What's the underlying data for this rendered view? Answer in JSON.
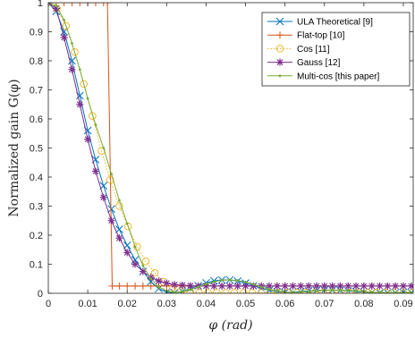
{
  "chart_data": {
    "type": "line",
    "title": "",
    "xlabel": "φ (rad)",
    "ylabel": "Normalized gain G(φ)",
    "xlim": [
      0,
      0.0925
    ],
    "ylim": [
      0,
      1
    ],
    "xticks": [
      "0",
      "0.01",
      "0.02",
      "0.03",
      "0.04",
      "0.05",
      "0.06",
      "0.07",
      "0.08",
      "0.09"
    ],
    "yticks": [
      "0",
      "0.1",
      "0.2",
      "0.3",
      "0.4",
      "0.5",
      "0.6",
      "0.7",
      "0.8",
      "0.9",
      "1"
    ],
    "grid": false,
    "legend_position": "top-right",
    "series": [
      {
        "name": "ULA Theoretical [9]",
        "color": "#0072BD",
        "marker": "x",
        "x": [
          0,
          0.002,
          0.004,
          0.006,
          0.008,
          0.01,
          0.012,
          0.014,
          0.016,
          0.018,
          0.02,
          0.022,
          0.024,
          0.026,
          0.028,
          0.03,
          0.032,
          0.034,
          0.036,
          0.038,
          0.04,
          0.042,
          0.044,
          0.046,
          0.048,
          0.05,
          0.052,
          0.054,
          0.056,
          0.058,
          0.06,
          0.062,
          0.064,
          0.066,
          0.068,
          0.07,
          0.072,
          0.074,
          0.076,
          0.078,
          0.08,
          0.082,
          0.084,
          0.086,
          0.088,
          0.09,
          0.092
        ],
        "values": [
          1.0,
          0.97,
          0.9,
          0.8,
          0.68,
          0.56,
          0.46,
          0.37,
          0.29,
          0.22,
          0.165,
          0.115,
          0.075,
          0.04,
          0.016,
          0.004,
          0.002,
          0.007,
          0.016,
          0.026,
          0.036,
          0.043,
          0.046,
          0.046,
          0.042,
          0.035,
          0.026,
          0.017,
          0.01,
          0.005,
          0.003,
          0.004,
          0.006,
          0.008,
          0.01,
          0.011,
          0.011,
          0.01,
          0.008,
          0.006,
          0.004,
          0.003,
          0.002,
          0.002,
          0.002,
          0.003,
          0.003
        ]
      },
      {
        "name": "Flat-top [10]",
        "color": "#D95319",
        "marker": "+",
        "x": [
          0,
          0.002,
          0.004,
          0.006,
          0.008,
          0.01,
          0.012,
          0.014,
          0.015,
          0.0162,
          0.018,
          0.02,
          0.022,
          0.024,
          0.026,
          0.028,
          0.03,
          0.032,
          0.034,
          0.036,
          0.038,
          0.04,
          0.042,
          0.044,
          0.046,
          0.048,
          0.05,
          0.052,
          0.054,
          0.056,
          0.058,
          0.06,
          0.062,
          0.064,
          0.066,
          0.068,
          0.07,
          0.072,
          0.074,
          0.076,
          0.078,
          0.08,
          0.082,
          0.084,
          0.086,
          0.088,
          0.09,
          0.092
        ],
        "values": [
          1,
          1,
          1,
          1,
          1,
          1,
          1,
          1,
          1,
          0.025,
          0.025,
          0.025,
          0.025,
          0.025,
          0.025,
          0.025,
          0.025,
          0.025,
          0.025,
          0.025,
          0.025,
          0.025,
          0.025,
          0.025,
          0.025,
          0.025,
          0.025,
          0.025,
          0.025,
          0.025,
          0.025,
          0.025,
          0.025,
          0.025,
          0.025,
          0.025,
          0.025,
          0.025,
          0.025,
          0.025,
          0.025,
          0.025,
          0.025,
          0.025,
          0.025,
          0.025,
          0.025,
          0.025
        ]
      },
      {
        "name": "Cos [11]",
        "color": "#EDB120",
        "marker": "o",
        "x": [
          0,
          0.0022,
          0.0045,
          0.0067,
          0.009,
          0.0112,
          0.0135,
          0.0157,
          0.018,
          0.0202,
          0.0225,
          0.0247,
          0.027,
          0.0292,
          0.0315,
          0.0337,
          0.036,
          0.0382,
          0.0405,
          0.0427,
          0.045,
          0.0472,
          0.0495,
          0.0517,
          0.054,
          0.0562,
          0.0585,
          0.0607,
          0.063,
          0.0652,
          0.0675,
          0.0697,
          0.072,
          0.0742,
          0.0765,
          0.0787,
          0.081,
          0.0832,
          0.0855,
          0.0877,
          0.09,
          0.0922
        ],
        "values": [
          1.0,
          0.98,
          0.92,
          0.83,
          0.72,
          0.61,
          0.49,
          0.39,
          0.3,
          0.23,
          0.16,
          0.11,
          0.07,
          0.04,
          0.02,
          0.008,
          0.003,
          0.002,
          0.002,
          0.002,
          0.002,
          0.002,
          0.002,
          0.002,
          0.002,
          0.002,
          0.002,
          0.002,
          0.002,
          0.002,
          0.002,
          0.002,
          0.002,
          0.002,
          0.002,
          0.002,
          0.002,
          0.002,
          0.002,
          0.002,
          0.002,
          0.002
        ]
      },
      {
        "name": "Gauss [12]",
        "color": "#7E2F8E",
        "marker": "*",
        "x": [
          0,
          0.002,
          0.004,
          0.006,
          0.008,
          0.01,
          0.012,
          0.014,
          0.016,
          0.018,
          0.02,
          0.022,
          0.024,
          0.026,
          0.028,
          0.03,
          0.032,
          0.034,
          0.036,
          0.038,
          0.04,
          0.042,
          0.044,
          0.046,
          0.048,
          0.05,
          0.052,
          0.054,
          0.056,
          0.058,
          0.06,
          0.062,
          0.064,
          0.066,
          0.068,
          0.07,
          0.072,
          0.074,
          0.076,
          0.078,
          0.08,
          0.082,
          0.084,
          0.086,
          0.088,
          0.09,
          0.092
        ],
        "values": [
          1.0,
          0.98,
          0.88,
          0.77,
          0.65,
          0.53,
          0.42,
          0.33,
          0.25,
          0.19,
          0.14,
          0.1,
          0.075,
          0.055,
          0.042,
          0.035,
          0.03,
          0.028,
          0.026,
          0.025,
          0.025,
          0.025,
          0.025,
          0.025,
          0.025,
          0.025,
          0.025,
          0.025,
          0.025,
          0.025,
          0.025,
          0.025,
          0.025,
          0.025,
          0.025,
          0.025,
          0.025,
          0.025,
          0.025,
          0.025,
          0.025,
          0.025,
          0.025,
          0.025,
          0.025,
          0.025,
          0.025
        ]
      },
      {
        "name": "Multi-cos [this paper]",
        "color": "#77AC30",
        "marker": ".",
        "x": [
          0,
          0.002,
          0.004,
          0.006,
          0.008,
          0.01,
          0.012,
          0.014,
          0.016,
          0.018,
          0.02,
          0.022,
          0.024,
          0.026,
          0.028,
          0.03,
          0.032,
          0.034,
          0.036,
          0.038,
          0.04,
          0.042,
          0.044,
          0.046,
          0.048,
          0.05,
          0.052,
          0.054,
          0.056,
          0.058,
          0.06,
          0.062,
          0.064,
          0.066,
          0.068,
          0.07,
          0.072,
          0.074,
          0.076,
          0.078,
          0.08,
          0.082,
          0.084,
          0.086,
          0.088,
          0.09,
          0.092
        ],
        "values": [
          1.0,
          0.99,
          0.94,
          0.86,
          0.77,
          0.67,
          0.58,
          0.5,
          0.41,
          0.32,
          0.24,
          0.16,
          0.095,
          0.05,
          0.022,
          0.008,
          0.003,
          0.005,
          0.012,
          0.022,
          0.032,
          0.04,
          0.045,
          0.046,
          0.044,
          0.039,
          0.031,
          0.022,
          0.014,
          0.008,
          0.004,
          0.003,
          0.004,
          0.006,
          0.008,
          0.01,
          0.011,
          0.011,
          0.01,
          0.008,
          0.006,
          0.004,
          0.003,
          0.002,
          0.002,
          0.002,
          0.003
        ]
      }
    ]
  }
}
